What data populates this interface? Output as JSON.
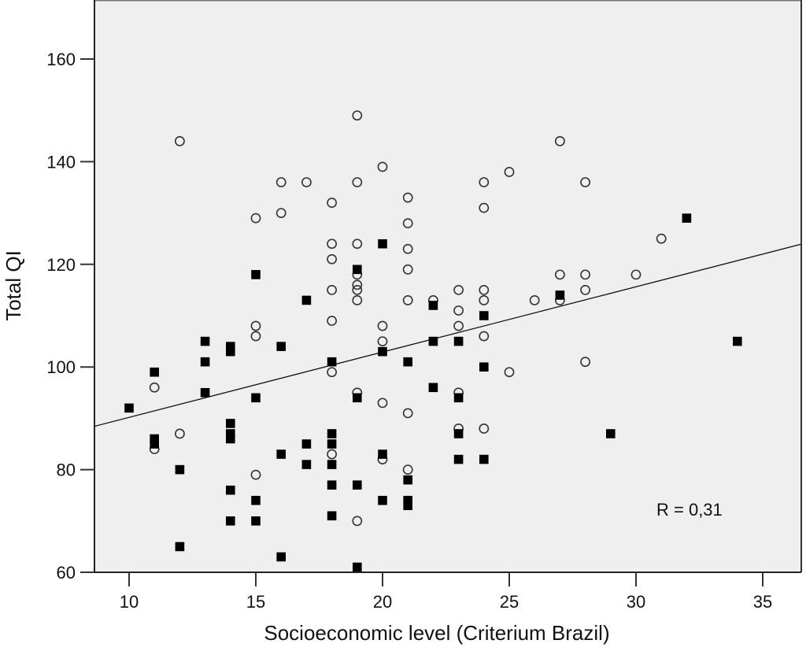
{
  "chart_data": {
    "type": "scatter",
    "title": "",
    "xlabel": "Socioeconomic level (Criterium Brazil)",
    "ylabel": "Total QI",
    "xlim": [
      8.6,
      36.5
    ],
    "ylim": [
      60,
      171
    ],
    "x_ticks": [
      10,
      15,
      20,
      25,
      30,
      35
    ],
    "y_ticks": [
      60,
      80,
      100,
      120,
      140,
      160
    ],
    "x_tick_labels": [
      "10",
      "15",
      "20",
      "25",
      "30",
      "35"
    ],
    "y_tick_labels": [
      "60",
      "80",
      "100",
      "120",
      "140",
      "160"
    ],
    "grid": false,
    "background": "#efefef",
    "annotation": "R = 0,31",
    "fit_line": {
      "x": [
        8.6,
        36.5
      ],
      "y": [
        88.4,
        123.9
      ]
    },
    "series": [
      {
        "name": "open-circles",
        "marker": "circle",
        "points": [
          [
            11,
            96
          ],
          [
            11,
            84
          ],
          [
            12,
            144
          ],
          [
            12,
            87
          ],
          [
            15,
            129
          ],
          [
            15,
            108
          ],
          [
            15,
            106
          ],
          [
            15,
            79
          ],
          [
            16,
            136
          ],
          [
            16,
            130
          ],
          [
            17,
            136
          ],
          [
            18,
            132
          ],
          [
            18,
            124
          ],
          [
            18,
            121
          ],
          [
            18,
            115
          ],
          [
            18,
            109
          ],
          [
            18,
            99
          ],
          [
            18,
            83
          ],
          [
            19,
            149
          ],
          [
            19,
            136
          ],
          [
            19,
            124
          ],
          [
            19,
            118
          ],
          [
            19,
            116
          ],
          [
            19,
            115
          ],
          [
            19,
            113
          ],
          [
            19,
            95
          ],
          [
            19,
            70
          ],
          [
            20,
            139
          ],
          [
            20,
            108
          ],
          [
            20,
            105
          ],
          [
            20,
            93
          ],
          [
            20,
            82
          ],
          [
            21,
            133
          ],
          [
            21,
            128
          ],
          [
            21,
            123
          ],
          [
            21,
            119
          ],
          [
            21,
            113
          ],
          [
            21,
            91
          ],
          [
            21,
            80
          ],
          [
            22,
            113
          ],
          [
            23,
            115
          ],
          [
            23,
            111
          ],
          [
            23,
            108
          ],
          [
            23,
            95
          ],
          [
            23,
            88
          ],
          [
            24,
            136
          ],
          [
            24,
            131
          ],
          [
            24,
            115
          ],
          [
            24,
            113
          ],
          [
            24,
            106
          ],
          [
            24,
            88
          ],
          [
            25,
            138
          ],
          [
            25,
            99
          ],
          [
            26,
            113
          ],
          [
            27,
            144
          ],
          [
            27,
            118
          ],
          [
            27,
            113
          ],
          [
            28,
            136
          ],
          [
            28,
            118
          ],
          [
            28,
            115
          ],
          [
            28,
            101
          ],
          [
            30,
            118
          ],
          [
            31,
            125
          ]
        ]
      },
      {
        "name": "filled-squares",
        "marker": "square",
        "points": [
          [
            10,
            92
          ],
          [
            11,
            99
          ],
          [
            11,
            86
          ],
          [
            11,
            85
          ],
          [
            12,
            80
          ],
          [
            12,
            65
          ],
          [
            13,
            105
          ],
          [
            13,
            101
          ],
          [
            13,
            95
          ],
          [
            14,
            104
          ],
          [
            14,
            103
          ],
          [
            14,
            89
          ],
          [
            14,
            87
          ],
          [
            14,
            86
          ],
          [
            14,
            76
          ],
          [
            14,
            70
          ],
          [
            15,
            118
          ],
          [
            15,
            94
          ],
          [
            15,
            74
          ],
          [
            15,
            70
          ],
          [
            16,
            104
          ],
          [
            16,
            83
          ],
          [
            16,
            63
          ],
          [
            17,
            113
          ],
          [
            17,
            85
          ],
          [
            17,
            81
          ],
          [
            18,
            101
          ],
          [
            18,
            87
          ],
          [
            18,
            85
          ],
          [
            18,
            81
          ],
          [
            18,
            77
          ],
          [
            18,
            71
          ],
          [
            19,
            119
          ],
          [
            19,
            94
          ],
          [
            19,
            77
          ],
          [
            19,
            61
          ],
          [
            20,
            124
          ],
          [
            20,
            103
          ],
          [
            20,
            83
          ],
          [
            20,
            74
          ],
          [
            21,
            101
          ],
          [
            21,
            78
          ],
          [
            21,
            74
          ],
          [
            21,
            73
          ],
          [
            22,
            112
          ],
          [
            22,
            105
          ],
          [
            22,
            96
          ],
          [
            23,
            105
          ],
          [
            23,
            94
          ],
          [
            23,
            87
          ],
          [
            23,
            82
          ],
          [
            24,
            110
          ],
          [
            24,
            100
          ],
          [
            24,
            82
          ],
          [
            27,
            114
          ],
          [
            29,
            87
          ],
          [
            32,
            129
          ],
          [
            34,
            105
          ]
        ]
      }
    ]
  }
}
